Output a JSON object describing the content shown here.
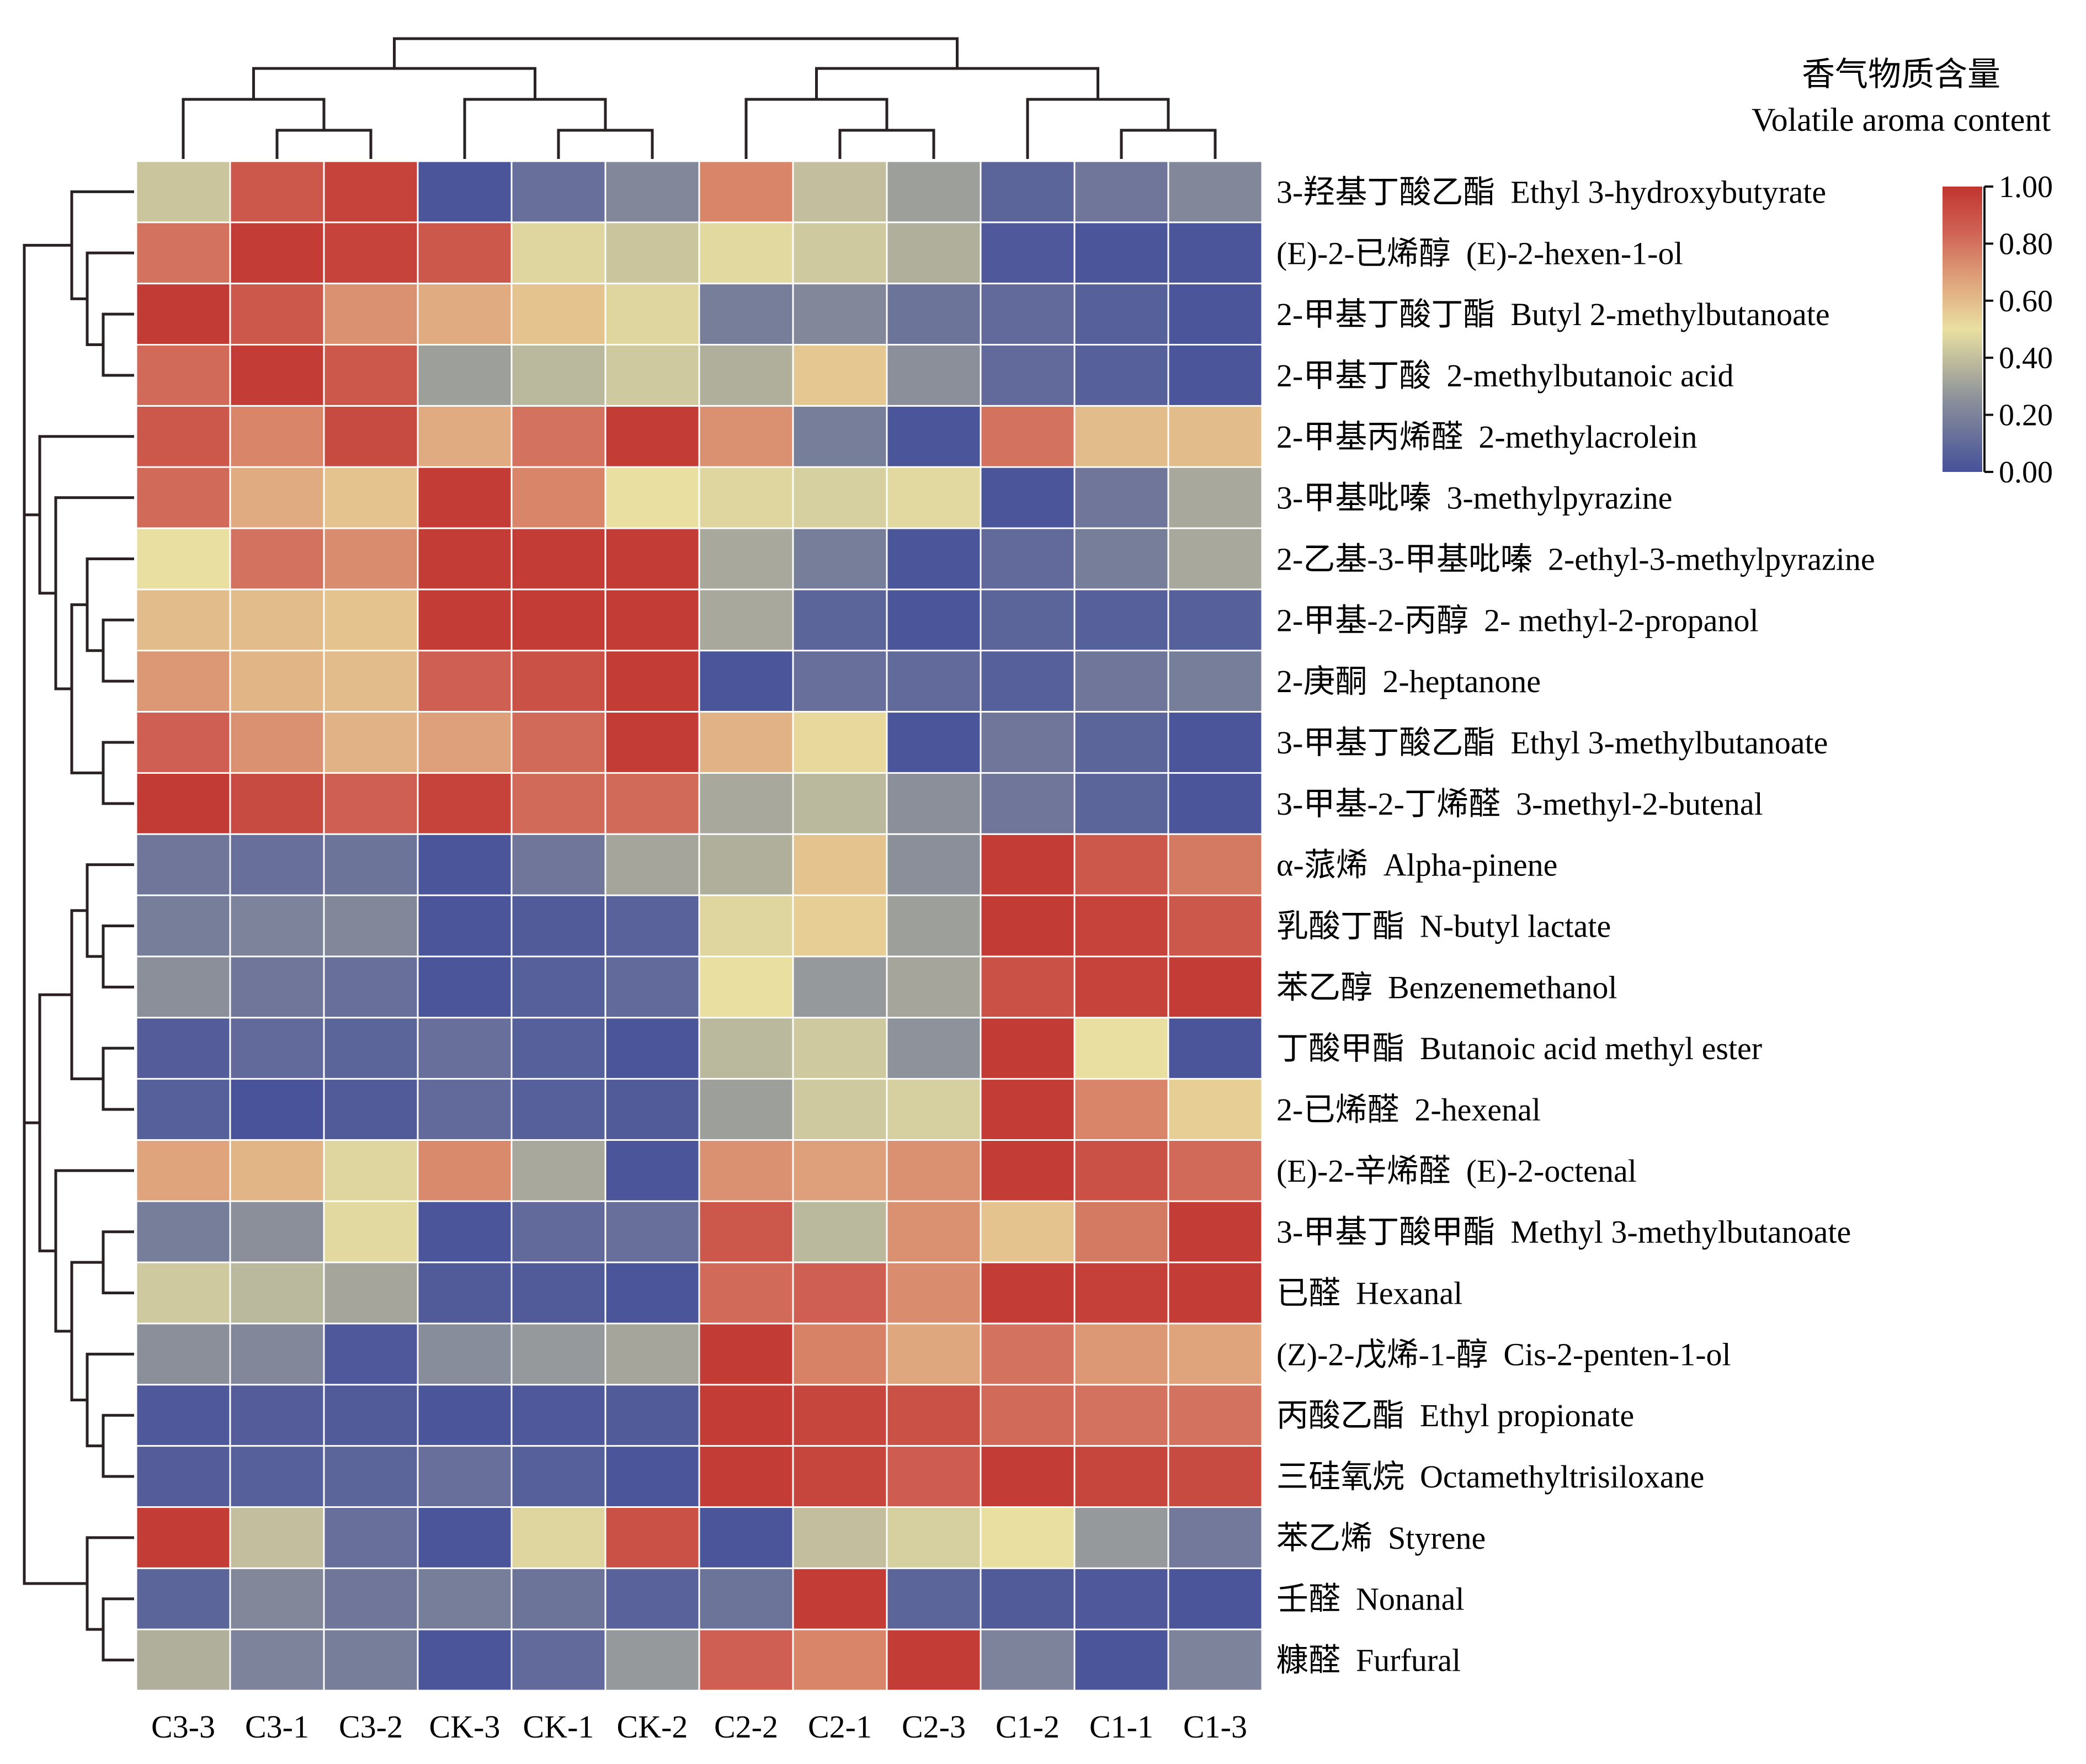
{
  "chart_data": {
    "type": "heatmap",
    "title": "",
    "legend": {
      "title_cn": "香气物质含量",
      "title_en": "Volatile aroma content",
      "ticks": [
        "1.00",
        "0.80",
        "0.60",
        "0.40",
        "0.20",
        "0.00"
      ],
      "range": [
        0,
        1
      ],
      "placement": "top-right",
      "color_stops": [
        {
          "value": 0.0,
          "color": "#46519a"
        },
        {
          "value": 0.25,
          "color": "#8a8f9a"
        },
        {
          "value": 0.5,
          "color": "#e9dfa0"
        },
        {
          "value": 0.68,
          "color": "#dea07a"
        },
        {
          "value": 0.85,
          "color": "#cf5f52"
        },
        {
          "value": 1.0,
          "color": "#c0352f"
        }
      ]
    },
    "columns": [
      "C3-3",
      "C3-1",
      "C3-2",
      "CK-3",
      "CK-1",
      "CK-2",
      "C2-2",
      "C2-1",
      "C2-3",
      "C1-2",
      "C1-1",
      "C1-3"
    ],
    "rows": [
      {
        "cn": "3-羟基丁酸乙酯",
        "en": "Ethyl 3-hydroxybutyrate",
        "values": [
          0.42,
          0.88,
          0.95,
          0.02,
          0.12,
          0.22,
          0.75,
          0.4,
          0.3,
          0.08,
          0.15,
          0.22
        ]
      },
      {
        "cn": "(E)-2-已烯醇",
        "en": "(E)-2-hexen-1-ol",
        "values": [
          0.8,
          0.97,
          0.95,
          0.88,
          0.47,
          0.42,
          0.48,
          0.43,
          0.35,
          0.03,
          0.02,
          0.02
        ]
      },
      {
        "cn": "2-甲基丁酸丁酯",
        "en": "Butyl 2-methylbutanoate",
        "values": [
          0.98,
          0.88,
          0.72,
          0.65,
          0.58,
          0.47,
          0.18,
          0.22,
          0.14,
          0.1,
          0.06,
          0.02
        ]
      },
      {
        "cn": "2-甲基丁酸",
        "en": "2-methylbutanoic acid",
        "values": [
          0.82,
          0.97,
          0.88,
          0.3,
          0.38,
          0.43,
          0.35,
          0.57,
          0.25,
          0.1,
          0.06,
          0.02
        ]
      },
      {
        "cn": "2-甲基丙烯醛",
        "en": "2-methylacrolein",
        "values": [
          0.88,
          0.75,
          0.92,
          0.65,
          0.8,
          0.97,
          0.72,
          0.18,
          0.02,
          0.8,
          0.6,
          0.6
        ]
      },
      {
        "cn": "3-甲基吡嗪",
        "en": "3-methylpyrazine",
        "values": [
          0.82,
          0.65,
          0.58,
          0.97,
          0.75,
          0.5,
          0.47,
          0.45,
          0.48,
          0.02,
          0.15,
          0.33
        ]
      },
      {
        "cn": "2-乙基-3-甲基吡嗪",
        "en": "2-ethyl-3-methylpyrazine",
        "values": [
          0.5,
          0.8,
          0.73,
          0.97,
          0.97,
          0.97,
          0.33,
          0.18,
          0.02,
          0.1,
          0.18,
          0.33
        ]
      },
      {
        "cn": "2-甲基-2-丙醇",
        "en": "2- methyl-2-propanol",
        "values": [
          0.6,
          0.6,
          0.58,
          0.97,
          0.97,
          0.97,
          0.33,
          0.08,
          0.02,
          0.08,
          0.06,
          0.06
        ]
      },
      {
        "cn": "2-庚酮",
        "en": "2-heptanone",
        "values": [
          0.7,
          0.62,
          0.6,
          0.85,
          0.9,
          0.97,
          0.02,
          0.12,
          0.1,
          0.06,
          0.15,
          0.18
        ]
      },
      {
        "cn": "3-甲基丁酸乙酯",
        "en": "Ethyl 3-methylbutanoate",
        "values": [
          0.85,
          0.72,
          0.63,
          0.68,
          0.82,
          0.97,
          0.63,
          0.52,
          0.02,
          0.15,
          0.08,
          0.02
        ]
      },
      {
        "cn": "3-甲基-2-丁烯醛",
        "en": "3-methyl-2-butenal",
        "values": [
          0.98,
          0.92,
          0.85,
          0.95,
          0.82,
          0.82,
          0.33,
          0.38,
          0.25,
          0.15,
          0.08,
          0.02
        ]
      },
      {
        "cn": "α-蒎烯",
        "en": "Alpha-pinene",
        "values": [
          0.15,
          0.12,
          0.14,
          0.02,
          0.15,
          0.32,
          0.35,
          0.58,
          0.25,
          0.97,
          0.88,
          0.78
        ]
      },
      {
        "cn": "乳酸丁酯",
        "en": "N-butyl lactate",
        "values": [
          0.18,
          0.2,
          0.22,
          0.02,
          0.04,
          0.07,
          0.47,
          0.55,
          0.3,
          0.98,
          0.95,
          0.88
        ]
      },
      {
        "cn": "苯乙醇",
        "en": "Benzenemethanol",
        "values": [
          0.25,
          0.15,
          0.12,
          0.02,
          0.06,
          0.1,
          0.5,
          0.28,
          0.32,
          0.9,
          0.95,
          0.97
        ]
      },
      {
        "cn": "丁酸甲酯",
        "en": "Butanoic acid methyl ester",
        "values": [
          0.05,
          0.1,
          0.08,
          0.12,
          0.06,
          0.02,
          0.38,
          0.43,
          0.26,
          0.98,
          0.5,
          0.02
        ]
      },
      {
        "cn": "2-已烯醛",
        "en": "2-hexenal",
        "values": [
          0.06,
          0.01,
          0.04,
          0.1,
          0.06,
          0.04,
          0.3,
          0.43,
          0.45,
          0.97,
          0.75,
          0.55
        ]
      },
      {
        "cn": "(E)-2-辛烯醛",
        "en": "(E)-2-octenal",
        "values": [
          0.67,
          0.62,
          0.47,
          0.74,
          0.33,
          0.02,
          0.72,
          0.68,
          0.72,
          0.97,
          0.9,
          0.82
        ]
      },
      {
        "cn": "3-甲基丁酸甲酯",
        "en": "Methyl 3-methylbutanoate",
        "values": [
          0.18,
          0.25,
          0.48,
          0.02,
          0.1,
          0.12,
          0.88,
          0.38,
          0.72,
          0.58,
          0.78,
          0.97
        ]
      },
      {
        "cn": "已醛",
        "en": "Hexanal",
        "values": [
          0.43,
          0.38,
          0.32,
          0.04,
          0.04,
          0.02,
          0.82,
          0.85,
          0.73,
          0.97,
          0.96,
          0.97
        ]
      },
      {
        "cn": "(Z)-2-戊烯-1-醇",
        "en": "Cis-2-penten-1-ol",
        "values": [
          0.25,
          0.22,
          0.03,
          0.24,
          0.28,
          0.32,
          0.98,
          0.76,
          0.66,
          0.8,
          0.7,
          0.67
        ]
      },
      {
        "cn": "丙酸乙酯",
        "en": "Ethyl propionate",
        "values": [
          0.03,
          0.05,
          0.04,
          0.02,
          0.03,
          0.04,
          0.97,
          0.94,
          0.9,
          0.82,
          0.8,
          0.8
        ]
      },
      {
        "cn": "三硅氧烷",
        "en": "Octamethyltrisiloxane",
        "values": [
          0.05,
          0.06,
          0.08,
          0.12,
          0.06,
          0.02,
          0.97,
          0.94,
          0.86,
          0.97,
          0.94,
          0.92
        ]
      },
      {
        "cn": "苯乙烯",
        "en": "Styrene",
        "values": [
          0.97,
          0.4,
          0.12,
          0.02,
          0.47,
          0.9,
          0.02,
          0.4,
          0.45,
          0.5,
          0.28,
          0.16
        ]
      },
      {
        "cn": "壬醛",
        "en": "Nonanal",
        "values": [
          0.08,
          0.22,
          0.15,
          0.18,
          0.14,
          0.07,
          0.14,
          0.97,
          0.08,
          0.04,
          0.03,
          0.02
        ]
      },
      {
        "cn": "糠醛",
        "en": "Furfural",
        "values": [
          0.35,
          0.2,
          0.18,
          0.02,
          0.1,
          0.28,
          0.85,
          0.75,
          0.97,
          0.2,
          0.02,
          0.2
        ]
      }
    ],
    "column_dendrogram": [
      [
        [
          0,
          [
            1,
            2
          ]
        ],
        [
          3,
          [
            4,
            5
          ]
        ]
      ],
      [
        [
          6,
          [
            7,
            8
          ]
        ],
        [
          9,
          [
            10,
            11
          ]
        ]
      ]
    ],
    "row_dendrogram": [
      [
        [
          0,
          [
            1,
            [
              2,
              3
            ]
          ]
        ],
        [
          4,
          [
            5,
            [
              [
                6,
                [
                  7,
                  8
                ]
              ],
              [
                9,
                10
              ]
            ]
          ]
        ]
      ],
      [
        [
          [
            [
              11,
              [
                12,
                13
              ]
            ],
            [
              14,
              15
            ]
          ],
          [
            16,
            [
              [
                17,
                18
              ],
              [
                19,
                [
                  20,
                  21
                ]
              ]
            ]
          ]
        ],
        [
          22,
          [
            23,
            24
          ]
        ]
      ]
    ]
  }
}
